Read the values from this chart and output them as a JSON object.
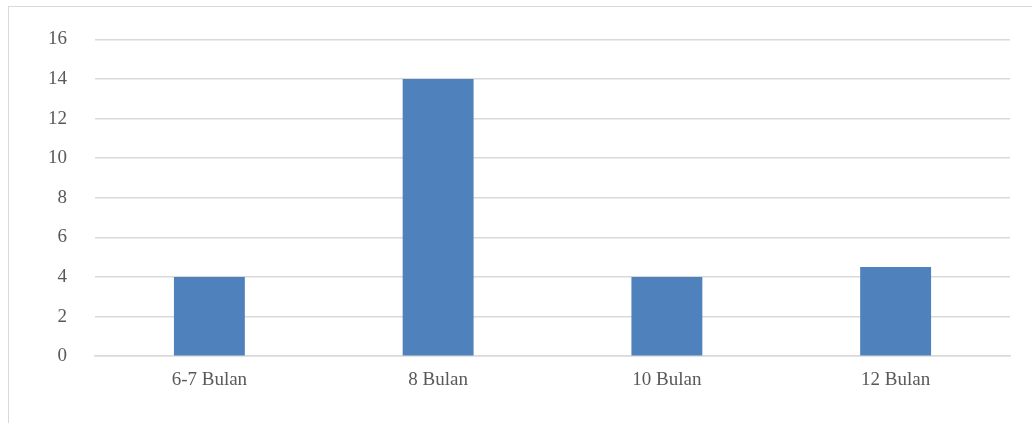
{
  "chart_data": {
    "type": "bar",
    "categories": [
      "6-7 Bulan",
      "8 Bulan",
      "10 Bulan",
      "12 Bulan"
    ],
    "values": [
      4,
      14,
      4,
      4.5
    ],
    "color": "#4f81bd",
    "ylim": [
      0,
      16
    ],
    "yticks": [
      0,
      2,
      4,
      6,
      8,
      10,
      12,
      14,
      16
    ],
    "grid": "y",
    "legend": false
  }
}
